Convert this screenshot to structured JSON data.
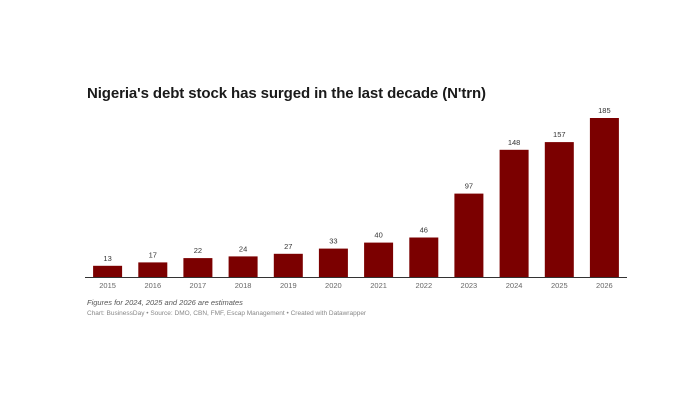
{
  "chart_data": {
    "type": "bar",
    "title": "Nigeria's debt stock has surged in the last decade (N'trn)",
    "categories": [
      "2015",
      "2016",
      "2017",
      "2018",
      "2019",
      "2020",
      "2021",
      "2022",
      "2023",
      "2024",
      "2025",
      "2026"
    ],
    "values": [
      13,
      17,
      22,
      24,
      27,
      33,
      40,
      46,
      97,
      148,
      157,
      185
    ],
    "data_labels": [
      "13",
      "17",
      "22",
      "24",
      "27",
      "33",
      "40",
      "46",
      "97",
      "148",
      "157",
      "185"
    ],
    "ylim": [
      0,
      185
    ],
    "bar_color": "#7b0000",
    "grid": false,
    "note": "Figures for 2024, 2025 and 2026 are estimates",
    "credit": "Chart: BusinessDay • Source: DMO, CBN, FMF, Escap Management • Created with Datawrapper"
  }
}
